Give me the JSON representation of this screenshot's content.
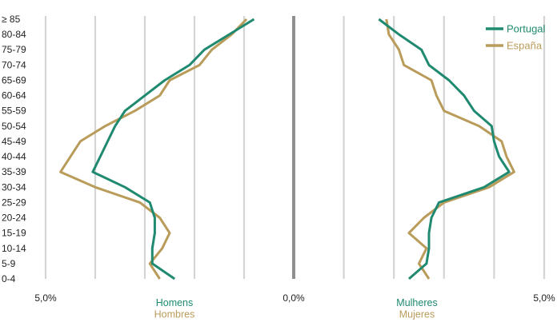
{
  "chart_data": {
    "type": "line",
    "x_ticks": [
      "5,0%",
      "0,0%",
      "5,0%"
    ],
    "xlim": [
      -5.0,
      5.0
    ],
    "grid": true,
    "legend_placement": "top-right",
    "categories": [
      "0-4",
      "5-9",
      "10-14",
      "15-19",
      "20-24",
      "25-29",
      "30-34",
      "35-39",
      "40-44",
      "45-49",
      "50-54",
      "55-59",
      "60-64",
      "65-69",
      "70-74",
      "75-79",
      "80-84",
      "≥ 85"
    ],
    "left_labels": [
      "Homens",
      "Hombres"
    ],
    "right_labels": [
      "Mulheres",
      "Mujeres"
    ],
    "series": [
      {
        "name": "Portugal",
        "color": "#1f8a70",
        "male": [
          2.4,
          2.85,
          2.85,
          2.8,
          2.8,
          2.9,
          3.4,
          4.05,
          3.9,
          3.75,
          3.6,
          3.4,
          3.0,
          2.6,
          2.1,
          1.8,
          1.3,
          0.8
        ],
        "female": [
          2.3,
          2.65,
          2.7,
          2.7,
          2.75,
          2.9,
          3.8,
          4.3,
          4.1,
          4.0,
          3.95,
          3.6,
          3.4,
          3.1,
          2.7,
          2.55,
          2.1,
          1.7
        ]
      },
      {
        "name": "España",
        "color": "#b99b5a",
        "male": [
          2.7,
          2.9,
          2.65,
          2.5,
          2.7,
          3.1,
          4.0,
          4.7,
          4.5,
          4.3,
          3.8,
          3.2,
          2.7,
          2.5,
          1.9,
          1.65,
          1.25,
          0.95
        ],
        "female": [
          2.7,
          2.5,
          2.65,
          2.3,
          2.6,
          3.0,
          3.9,
          4.4,
          4.25,
          4.15,
          3.7,
          3.0,
          2.85,
          2.75,
          2.2,
          2.1,
          1.9,
          1.85
        ]
      }
    ]
  }
}
